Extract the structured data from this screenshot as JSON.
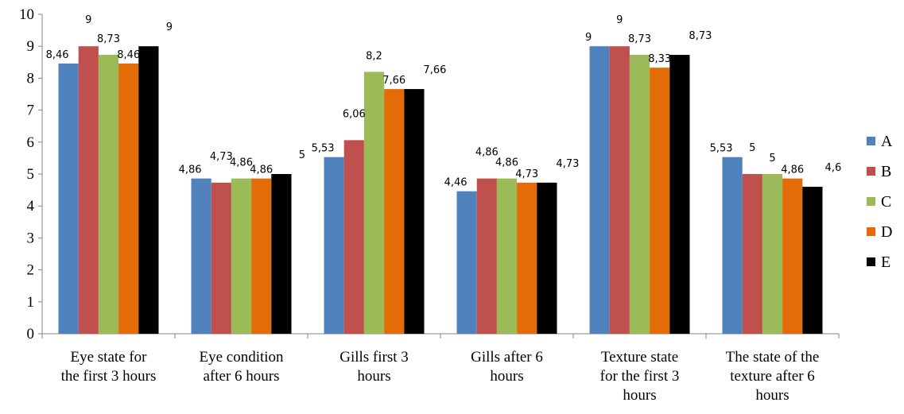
{
  "chart_data": {
    "type": "bar",
    "categories": [
      [
        "Eye state for",
        "the first 3 hours"
      ],
      [
        "Eye condition",
        "after 6 hours"
      ],
      [
        "Gills first 3",
        "hours"
      ],
      [
        "Gills after 6",
        "hours"
      ],
      [
        "Texture state",
        "for the first 3",
        "hours"
      ],
      [
        "The state of the",
        "texture after 6",
        "hours"
      ]
    ],
    "series": [
      {
        "name": "A",
        "color": "#4F81BD",
        "values": [
          8.46,
          4.86,
          5.53,
          4.46,
          9,
          5.53
        ],
        "labels": [
          "8,46",
          "4,86",
          "5,53",
          "4,46",
          "9",
          "5,53"
        ]
      },
      {
        "name": "B",
        "color": "#C0504D",
        "values": [
          9,
          4.73,
          6.06,
          4.86,
          9,
          5
        ],
        "labels": [
          "9",
          "4,73",
          "6,06",
          "4,86",
          "9",
          "5"
        ]
      },
      {
        "name": "C",
        "color": "#9BBB59",
        "values": [
          8.73,
          4.86,
          8.2,
          4.86,
          8.73,
          5
        ],
        "labels": [
          "8,73",
          "4,86",
          "8,2",
          "4,86",
          "8,73",
          "5"
        ]
      },
      {
        "name": "D",
        "color": "#E36C09",
        "values": [
          8.46,
          4.86,
          7.66,
          4.73,
          8.33,
          4.86
        ],
        "labels": [
          "8,46",
          "4,86",
          "7,66",
          "4,73",
          "8,33",
          "4,86"
        ]
      },
      {
        "name": "E",
        "color": "#000000",
        "values": [
          9,
          5,
          7.66,
          4.73,
          8.73,
          4.6
        ],
        "labels": [
          "9",
          "5",
          "7,66",
          "4,73",
          "8,73",
          "4,6"
        ]
      }
    ],
    "yticks": [
      "0",
      "1",
      "2",
      "3",
      "4",
      "5",
      "6",
      "7",
      "8",
      "9",
      "10"
    ],
    "ylim": [
      0,
      10
    ],
    "grid": false,
    "legend": "right"
  }
}
